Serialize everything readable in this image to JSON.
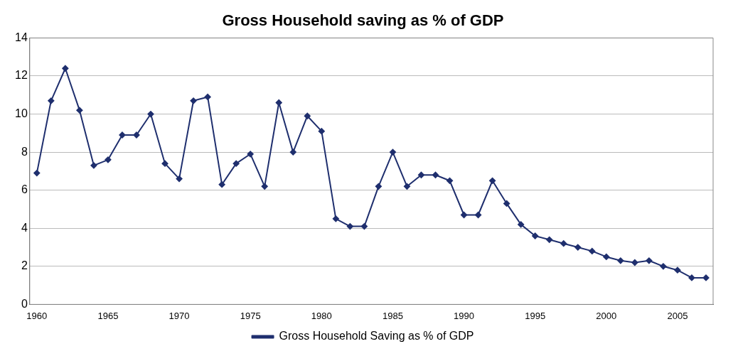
{
  "chart_data": {
    "type": "line",
    "title": "Gross Household saving as % of GDP",
    "x": [
      1960,
      1961,
      1962,
      1963,
      1964,
      1965,
      1966,
      1967,
      1968,
      1969,
      1970,
      1971,
      1972,
      1973,
      1974,
      1975,
      1976,
      1977,
      1978,
      1979,
      1980,
      1981,
      1982,
      1983,
      1984,
      1985,
      1986,
      1987,
      1988,
      1989,
      1990,
      1991,
      1992,
      1993,
      1994,
      1995,
      1996,
      1997,
      1998,
      1999,
      2000,
      2001,
      2002,
      2003,
      2004,
      2005,
      2006,
      2007
    ],
    "series": [
      {
        "name": "Gross Household Saving as % of GDP",
        "color": "#1f2f6e",
        "values": [
          6.9,
          10.7,
          12.4,
          10.2,
          7.3,
          7.6,
          8.9,
          8.9,
          10.0,
          7.4,
          6.6,
          10.7,
          10.9,
          6.3,
          7.4,
          7.9,
          6.2,
          10.6,
          8.0,
          9.9,
          9.1,
          4.5,
          4.1,
          4.1,
          6.2,
          8.0,
          6.2,
          6.8,
          6.8,
          6.5,
          4.7,
          4.7,
          6.5,
          5.3,
          4.2,
          3.6,
          3.4,
          3.2,
          3.0,
          2.8,
          2.5,
          2.3,
          2.2,
          2.3,
          2.0,
          1.8,
          1.4,
          1.4
        ]
      }
    ],
    "xlim": [
      1959.5,
      2007.5
    ],
    "xticks": [
      1960,
      1965,
      1970,
      1975,
      1980,
      1985,
      1990,
      1995,
      2000,
      2005
    ],
    "ylim": [
      0,
      14
    ],
    "yticks": [
      0,
      2,
      4,
      6,
      8,
      10,
      12,
      14
    ],
    "grid": "y",
    "legend": "bottom",
    "marker": "diamond",
    "line_style": "solid"
  }
}
